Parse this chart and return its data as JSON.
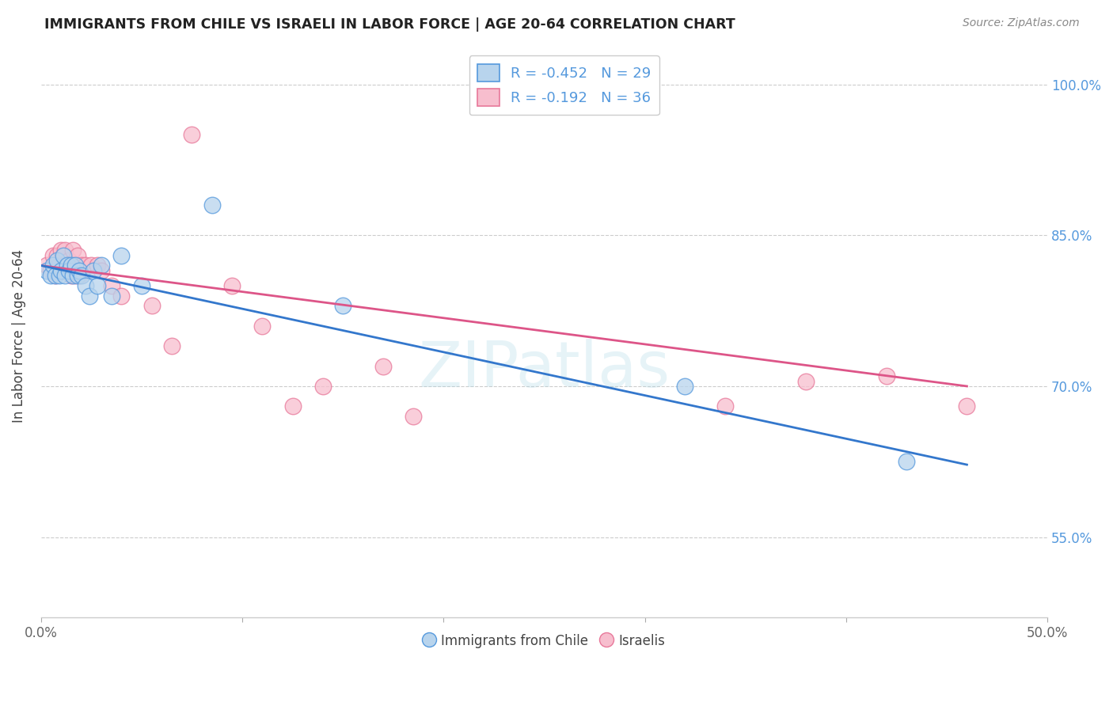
{
  "title": "IMMIGRANTS FROM CHILE VS ISRAELI IN LABOR FORCE | AGE 20-64 CORRELATION CHART",
  "source": "Source: ZipAtlas.com",
  "ylabel": "In Labor Force | Age 20-64",
  "xlim": [
    0.0,
    0.5
  ],
  "ylim": [
    0.47,
    1.03
  ],
  "xticks": [
    0.0,
    0.1,
    0.2,
    0.3,
    0.4,
    0.5
  ],
  "xticklabels": [
    "0.0%",
    "",
    "",
    "",
    "",
    "50.0%"
  ],
  "yticks": [
    0.55,
    0.7,
    0.85,
    1.0
  ],
  "yticklabels": [
    "55.0%",
    "70.0%",
    "85.0%",
    "100.0%"
  ],
  "blue_fill": "#b8d4ed",
  "pink_fill": "#f7bece",
  "blue_edge": "#5599dd",
  "pink_edge": "#e8789a",
  "blue_line": "#3377cc",
  "pink_line": "#dd5588",
  "legend_R_blue": "R = -0.452",
  "legend_N_blue": "N = 29",
  "legend_R_pink": "R = -0.192",
  "legend_N_pink": "N = 36",
  "watermark": "ZIPatlas",
  "blue_scatter_x": [
    0.003,
    0.005,
    0.006,
    0.007,
    0.008,
    0.009,
    0.01,
    0.011,
    0.012,
    0.013,
    0.014,
    0.015,
    0.016,
    0.017,
    0.018,
    0.019,
    0.02,
    0.022,
    0.024,
    0.026,
    0.028,
    0.03,
    0.035,
    0.04,
    0.05,
    0.085,
    0.15,
    0.32,
    0.43
  ],
  "blue_scatter_y": [
    0.815,
    0.81,
    0.82,
    0.81,
    0.825,
    0.81,
    0.815,
    0.83,
    0.81,
    0.82,
    0.815,
    0.82,
    0.81,
    0.82,
    0.81,
    0.815,
    0.81,
    0.8,
    0.79,
    0.815,
    0.8,
    0.82,
    0.79,
    0.83,
    0.8,
    0.88,
    0.78,
    0.7,
    0.625
  ],
  "pink_scatter_x": [
    0.003,
    0.005,
    0.006,
    0.007,
    0.008,
    0.009,
    0.01,
    0.011,
    0.012,
    0.013,
    0.014,
    0.015,
    0.016,
    0.017,
    0.018,
    0.019,
    0.02,
    0.022,
    0.025,
    0.028,
    0.03,
    0.035,
    0.04,
    0.055,
    0.065,
    0.075,
    0.095,
    0.11,
    0.125,
    0.14,
    0.17,
    0.185,
    0.34,
    0.38,
    0.42,
    0.46
  ],
  "pink_scatter_y": [
    0.82,
    0.815,
    0.83,
    0.81,
    0.83,
    0.82,
    0.835,
    0.815,
    0.835,
    0.82,
    0.825,
    0.81,
    0.835,
    0.81,
    0.83,
    0.81,
    0.82,
    0.82,
    0.82,
    0.82,
    0.815,
    0.8,
    0.79,
    0.78,
    0.74,
    0.95,
    0.8,
    0.76,
    0.68,
    0.7,
    0.72,
    0.67,
    0.68,
    0.705,
    0.71,
    0.68
  ],
  "blue_trend_x": [
    0.0,
    0.46
  ],
  "blue_trend_y": [
    0.82,
    0.622
  ],
  "pink_trend_x": [
    0.0,
    0.46
  ],
  "pink_trend_y": [
    0.82,
    0.7
  ]
}
